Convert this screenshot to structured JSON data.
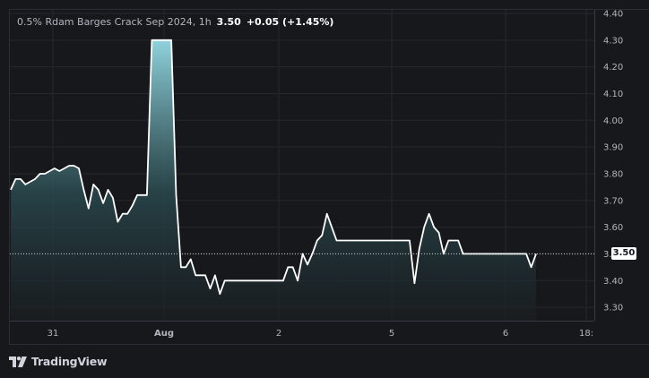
{
  "legend": {
    "symbol": "0.5% Rdam Barges Crack Sep 2024, 1h",
    "price": "3.50",
    "change": "+0.05 (+1.45%)"
  },
  "brand": {
    "name": "TradingView",
    "icon": "tradingview-logo-icon"
  },
  "colors": {
    "line": "#ffffff",
    "grid": "#24272f",
    "axis_text": "#b2b5be",
    "fill_top": "#8fd3dc",
    "fill_bottom": "#1a1f22"
  },
  "chart_data": {
    "type": "area",
    "title": "0.5% Rdam Barges Crack Sep 2024, 1h",
    "ylim": [
      3.25,
      4.4
    ],
    "y_ticks": [
      "4.40",
      "4.30",
      "4.20",
      "4.10",
      "4.00",
      "3.90",
      "3.80",
      "3.70",
      "3.60",
      "3.50",
      "3.40",
      "3.30"
    ],
    "x_ticks": [
      "31",
      "Aug",
      "2",
      "5",
      "6",
      "18:"
    ],
    "last_price_label": "3.50",
    "last_price": 3.5,
    "grid": true,
    "values": [
      3.74,
      3.78,
      3.78,
      3.76,
      3.77,
      3.78,
      3.8,
      3.8,
      3.81,
      3.82,
      3.81,
      3.82,
      3.83,
      3.83,
      3.82,
      3.74,
      3.67,
      3.76,
      3.74,
      3.69,
      3.74,
      3.71,
      3.62,
      3.65,
      3.65,
      3.68,
      3.72,
      3.72,
      3.72,
      4.3,
      4.3,
      4.3,
      4.3,
      4.3,
      3.72,
      3.45,
      3.45,
      3.48,
      3.42,
      3.42,
      3.42,
      3.37,
      3.42,
      3.35,
      3.4,
      3.4,
      3.4,
      3.4,
      3.4,
      3.4,
      3.4,
      3.4,
      3.4,
      3.4,
      3.4,
      3.4,
      3.4,
      3.45,
      3.45,
      3.4,
      3.5,
      3.46,
      3.5,
      3.55,
      3.57,
      3.65,
      3.6,
      3.55,
      3.55,
      3.55,
      3.55,
      3.55,
      3.55,
      3.55,
      3.55,
      3.55,
      3.55,
      3.55,
      3.55,
      3.55,
      3.55,
      3.55,
      3.55,
      3.39,
      3.52,
      3.6,
      3.65,
      3.6,
      3.58,
      3.5,
      3.55,
      3.55,
      3.55,
      3.5,
      3.5,
      3.5,
      3.5,
      3.5,
      3.5,
      3.5,
      3.5,
      3.5,
      3.5,
      3.5,
      3.5,
      3.5,
      3.5,
      3.45,
      3.5
    ]
  }
}
